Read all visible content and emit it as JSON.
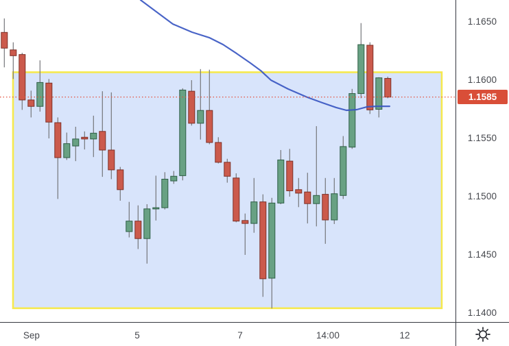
{
  "chart_data": {
    "type": "candlestick",
    "title": "",
    "timeframe_hint": "intraday (early September)",
    "grid": false,
    "legend_position": "none",
    "ylim": [
      1.1372,
      1.1669
    ],
    "colors": {
      "background": "#ffffff",
      "up_fill": "#68a183",
      "up_border": "#2e5e45",
      "down_fill": "#cb5a4c",
      "down_border": "#7d2f26",
      "wick": "#75767a",
      "ma_line": "#3a57c2",
      "dotted_price_line": "#e34f3a",
      "badge_bg": "#d94e38",
      "badge_text": "#ffffff",
      "box_fill": "#d8e4fb",
      "box_border": "#f6e94e",
      "axis_line": "#33363e",
      "axis_text": "#45474d"
    },
    "y_axis": {
      "ticks": [
        {
          "label": "1.1650",
          "value": 1.165
        },
        {
          "label": "1.1600",
          "value": 1.16
        },
        {
          "label": "1.1550",
          "value": 1.155
        },
        {
          "label": "1.1500",
          "value": 1.15
        },
        {
          "label": "1.1450",
          "value": 1.145
        },
        {
          "label": "1.1400",
          "value": 1.14
        }
      ]
    },
    "x_axis": {
      "ticks": [
        {
          "label": "Sep",
          "bar": 3.05
        },
        {
          "label": "5",
          "bar": 14.9
        },
        {
          "label": "7",
          "bar": 26.44
        },
        {
          "label": "14:00",
          "bar": 36.28
        },
        {
          "label": "12",
          "bar": 44.9
        }
      ]
    },
    "price_line": {
      "label": "1.1585",
      "value": 1.15855
    },
    "box_annotation": {
      "bar_start": 0.977,
      "bar_end": 49.05,
      "price_top": 1.16068,
      "price_bottom": 1.14042
    },
    "ma_line": {
      "name": "moving-average",
      "points_bar_price": [
        [
          15.28,
          1.16688
        ],
        [
          16.82,
          1.166
        ],
        [
          18.9,
          1.16482
        ],
        [
          21.05,
          1.16412
        ],
        [
          22.98,
          1.16365
        ],
        [
          24.52,
          1.16306
        ],
        [
          26.05,
          1.16229
        ],
        [
          27.59,
          1.16147
        ],
        [
          28.75,
          1.16082
        ],
        [
          29.9,
          1.16
        ],
        [
          31.82,
          1.15924
        ],
        [
          33.98,
          1.15853
        ],
        [
          35.67,
          1.15806
        ],
        [
          37.21,
          1.15765
        ],
        [
          38.36,
          1.15741
        ],
        [
          39.52,
          1.15747
        ],
        [
          40.67,
          1.15771
        ],
        [
          41.82,
          1.15776
        ],
        [
          43.2,
          1.15776
        ]
      ]
    },
    "ohlc": [
      [
        1.1641,
        1.1653,
        1.1611,
        1.16275
      ],
      [
        1.1626,
        1.16325,
        1.1601,
        1.1621
      ],
      [
        1.1622,
        1.16235,
        1.15745,
        1.1583
      ],
      [
        1.1583,
        1.1591,
        1.1568,
        1.15775
      ],
      [
        1.15775,
        1.1617,
        1.1573,
        1.1598
      ],
      [
        1.15975,
        1.1601,
        1.155,
        1.1564
      ],
      [
        1.15635,
        1.1568,
        1.1498,
        1.15335
      ],
      [
        1.15335,
        1.1555,
        1.15315,
        1.15455
      ],
      [
        1.15435,
        1.156,
        1.15305,
        1.15495
      ],
      [
        1.1551,
        1.1556,
        1.15405,
        1.15495
      ],
      [
        1.15495,
        1.15695,
        1.1534,
        1.15545
      ],
      [
        1.1556,
        1.15905,
        1.1517,
        1.154
      ],
      [
        1.154,
        1.15895,
        1.1515,
        1.1523
      ],
      [
        1.1523,
        1.15255,
        1.14965,
        1.1506
      ],
      [
        1.147,
        1.14955,
        1.1465,
        1.1479
      ],
      [
        1.1479,
        1.14925,
        1.1455,
        1.1464
      ],
      [
        1.1464,
        1.14935,
        1.14425,
        1.14895
      ],
      [
        1.14895,
        1.1518,
        1.14795,
        1.14905
      ],
      [
        1.14905,
        1.1521,
        1.1489,
        1.1515
      ],
      [
        1.15135,
        1.1522,
        1.1511,
        1.15175
      ],
      [
        1.1518,
        1.1593,
        1.1514,
        1.15915
      ],
      [
        1.15905,
        1.16,
        1.1561,
        1.1563
      ],
      [
        1.1563,
        1.16095,
        1.1549,
        1.1574
      ],
      [
        1.1574,
        1.1609,
        1.1545,
        1.15465
      ],
      [
        1.15465,
        1.1551,
        1.15285,
        1.15295
      ],
      [
        1.15295,
        1.15325,
        1.1512,
        1.15175
      ],
      [
        1.1516,
        1.152,
        1.1478,
        1.1479
      ],
      [
        1.14795,
        1.14855,
        1.145,
        1.1477
      ],
      [
        1.1477,
        1.1516,
        1.1469,
        1.14955
      ],
      [
        1.14955,
        1.1502,
        1.1414,
        1.14295
      ],
      [
        1.143,
        1.1499,
        1.1404,
        1.14945
      ],
      [
        1.14945,
        1.154,
        1.14935,
        1.15315
      ],
      [
        1.15305,
        1.1541,
        1.15,
        1.1505
      ],
      [
        1.1506,
        1.1516,
        1.1491,
        1.1503
      ],
      [
        1.1504,
        1.15205,
        1.1477,
        1.1494
      ],
      [
        1.1494,
        1.15605,
        1.14745,
        1.1501
      ],
      [
        1.1502,
        1.1516,
        1.14595,
        1.148
      ],
      [
        1.148,
        1.1516,
        1.14765,
        1.15025
      ],
      [
        1.1501,
        1.1552,
        1.1498,
        1.1543
      ],
      [
        1.15425,
        1.15925,
        1.1541,
        1.15885
      ],
      [
        1.15885,
        1.1649,
        1.15845,
        1.16305
      ],
      [
        1.163,
        1.16325,
        1.1571,
        1.15745
      ],
      [
        1.1575,
        1.16025,
        1.1568,
        1.1602
      ],
      [
        1.16015,
        1.1603,
        1.15845,
        1.15855
      ]
    ]
  }
}
